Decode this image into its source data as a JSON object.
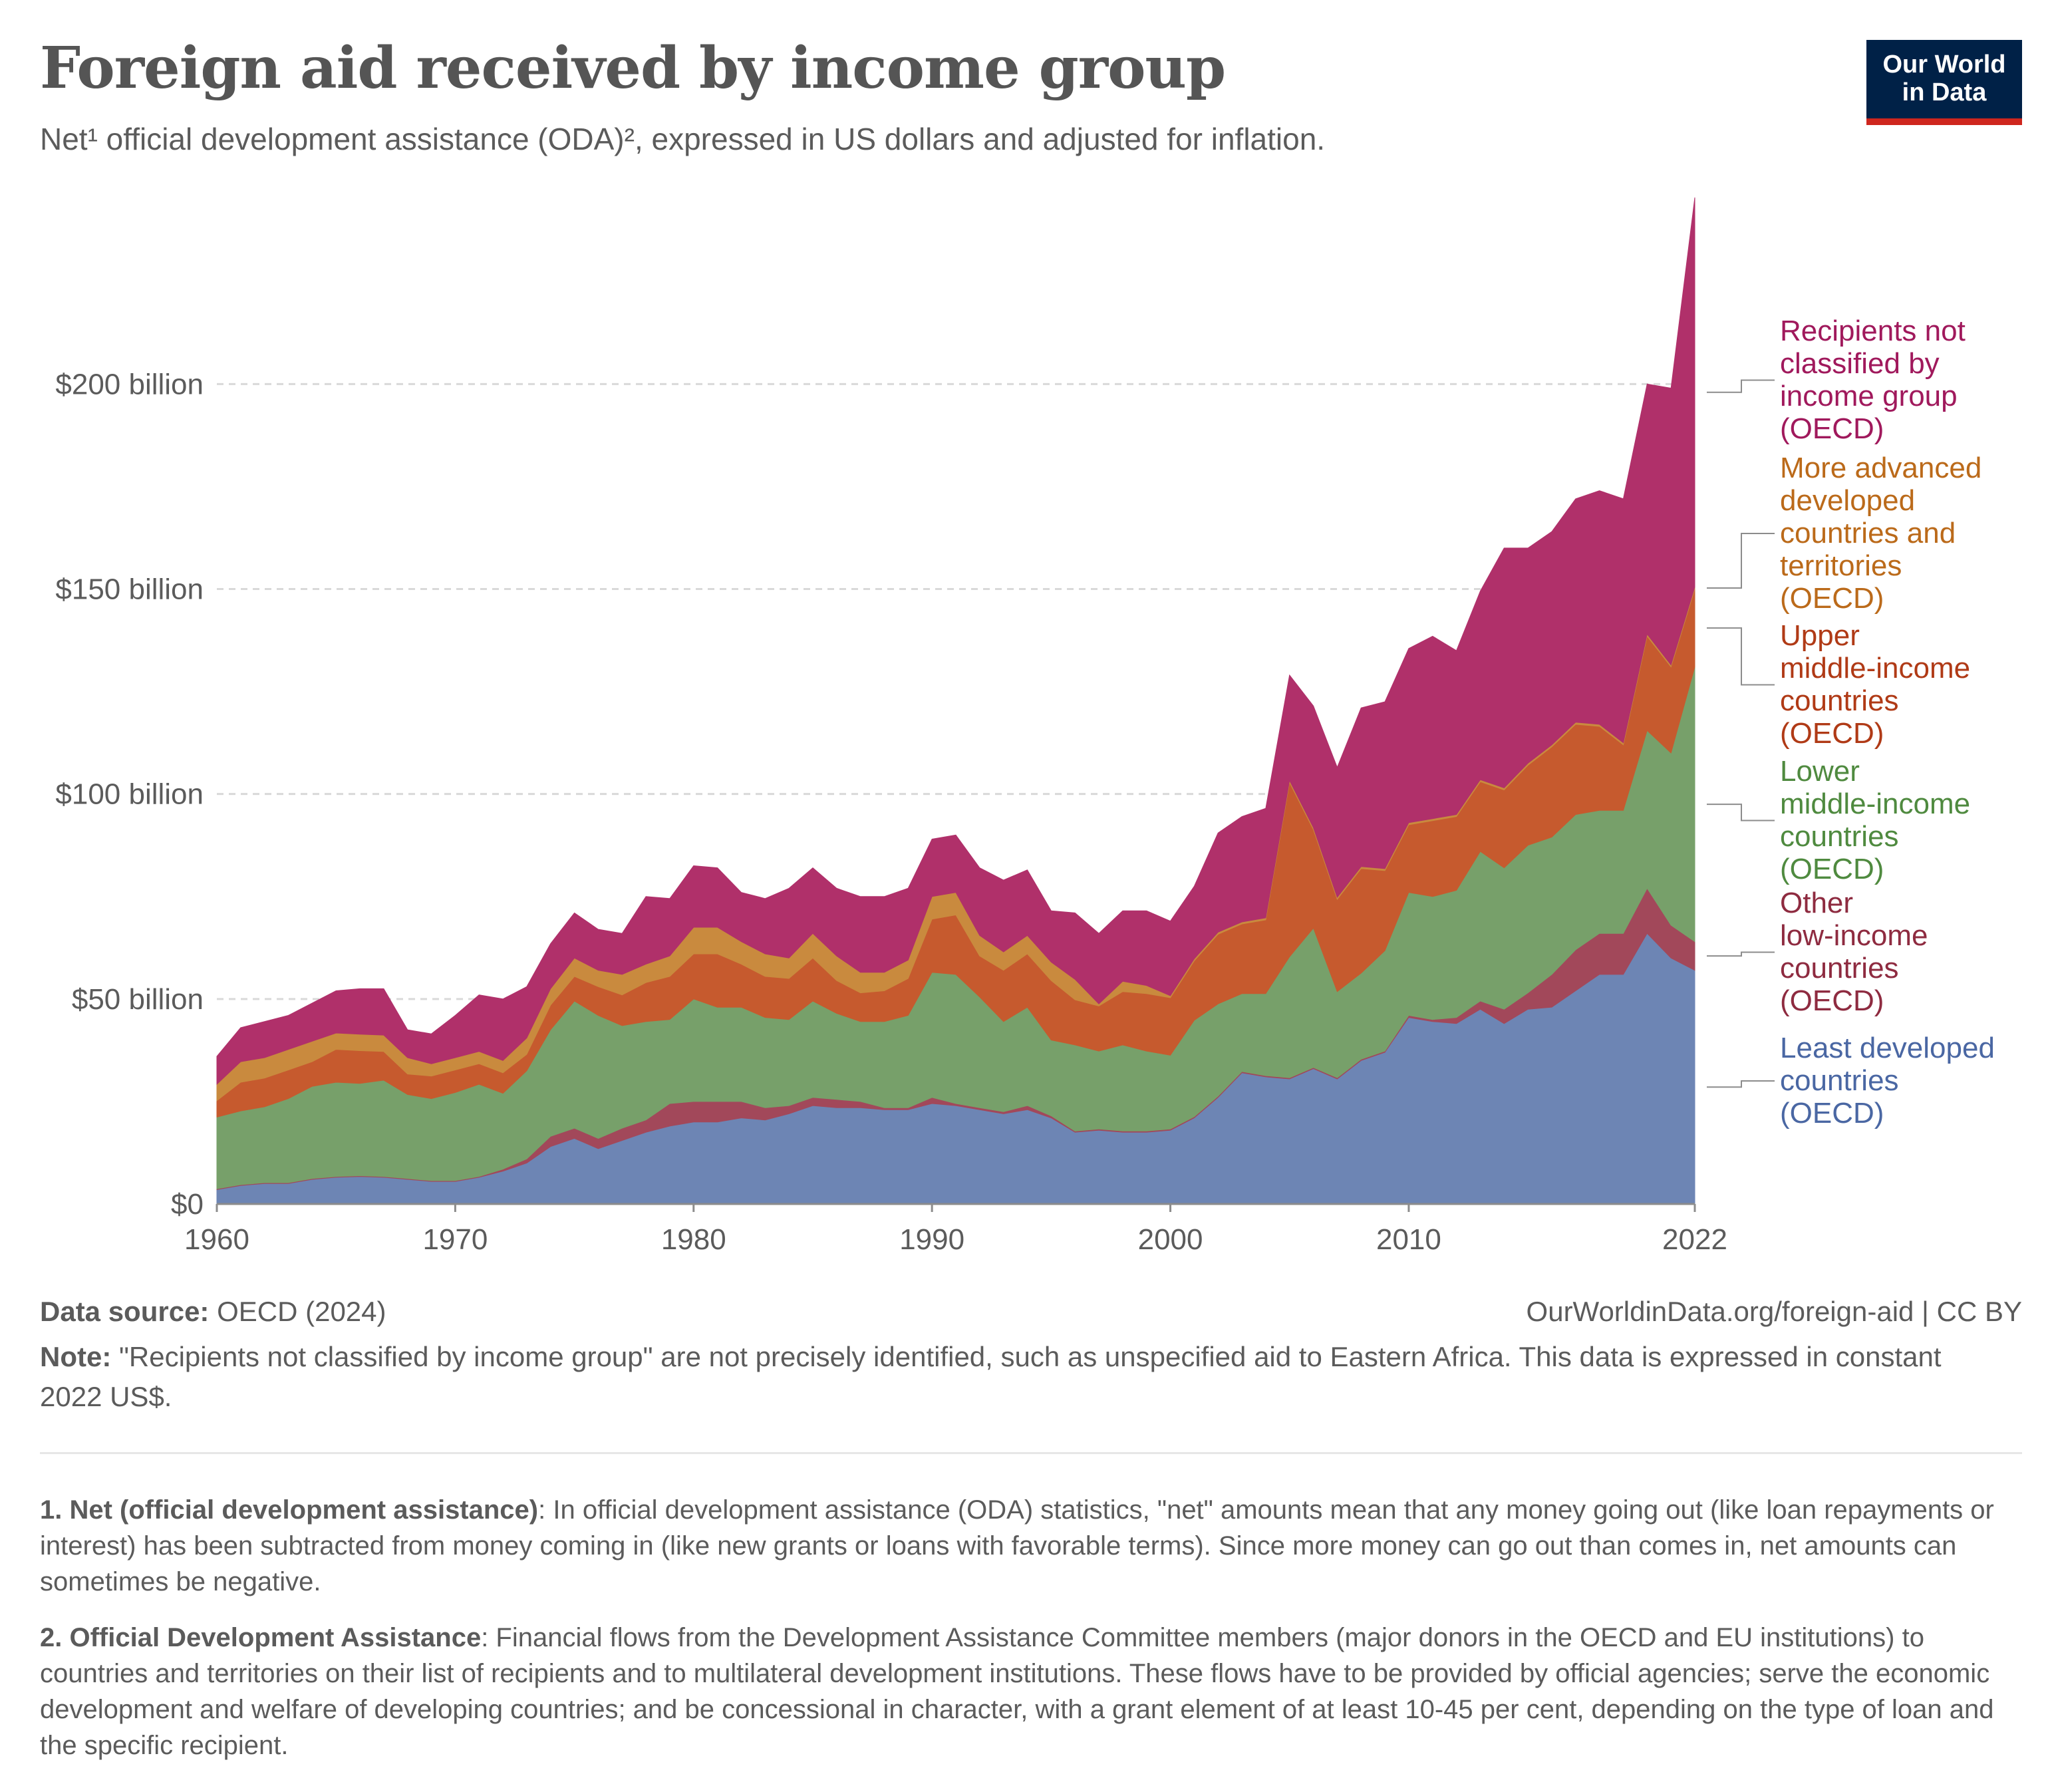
{
  "header": {
    "title": "Foreign aid received by income group",
    "subtitle": "Net¹ official development assistance (ODA)², expressed in US dollars and adjusted for inflation.",
    "logo_line1": "Our World",
    "logo_line2": "in Data"
  },
  "colors": {
    "ldc": "#6d85b4",
    "other_lic": "#a2485a",
    "lmic": "#77a06a",
    "umic": "#c65a2e",
    "madct": "#c98a3e",
    "unclassified": "#b0306a"
  },
  "chart_data": {
    "type": "area",
    "stacked": true,
    "title": "Foreign aid received by income group",
    "xlim": [
      1960,
      2022
    ],
    "ylim": [
      0,
      245
    ],
    "y_ticks": [
      0,
      50,
      100,
      150,
      200
    ],
    "y_tick_labels": [
      "$0",
      "$50 billion",
      "$100 billion",
      "$150 billion",
      "$200 billion"
    ],
    "x_tick_labels": [
      "1960",
      "1970",
      "1980",
      "1990",
      "2000",
      "2010",
      "2022"
    ],
    "x_ticks": [
      1960,
      1970,
      1980,
      1990,
      2000,
      2010,
      2022
    ],
    "grid": "horizontal dashed",
    "legend": "right",
    "unit": "billion constant 2022 US$",
    "x": [
      1960,
      1961,
      1962,
      1963,
      1964,
      1965,
      1966,
      1967,
      1968,
      1969,
      1970,
      1971,
      1972,
      1973,
      1974,
      1975,
      1976,
      1977,
      1978,
      1979,
      1980,
      1981,
      1982,
      1983,
      1984,
      1985,
      1986,
      1987,
      1988,
      1989,
      1990,
      1991,
      1992,
      1993,
      1994,
      1995,
      1996,
      1997,
      1998,
      1999,
      2000,
      2001,
      2002,
      2003,
      2004,
      2005,
      2006,
      2007,
      2008,
      2009,
      2010,
      2011,
      2012,
      2013,
      2014,
      2015,
      2016,
      2017,
      2018,
      2019,
      2020,
      2021,
      2022
    ],
    "series": [
      {
        "name": "Least developed countries (OECD)",
        "color_key": "ldc",
        "values": [
          3.5,
          4.5,
          5,
          5,
          6,
          6.5,
          6.7,
          6.5,
          6,
          5.5,
          5.5,
          6.5,
          8,
          10,
          14,
          16,
          13.5,
          15.5,
          17.5,
          19,
          20,
          20,
          21,
          20.5,
          22,
          24,
          23.5,
          23.5,
          23,
          23,
          24.5,
          24,
          23,
          22,
          23,
          21,
          17.5,
          18,
          17.5,
          17.5,
          18,
          21,
          26,
          32,
          31,
          30.5,
          33,
          30.5,
          35,
          37,
          45.5,
          44.5,
          44,
          47.5,
          44,
          47.5,
          48,
          52,
          56,
          56,
          66,
          60,
          57
        ]
      },
      {
        "name": "Other low-income countries (OECD)",
        "color_key": "other_lic",
        "values": [
          0.2,
          0.2,
          0.2,
          0.2,
          0.2,
          0.2,
          0.2,
          0.2,
          0.2,
          0.2,
          0.2,
          0.2,
          0.5,
          1,
          2.5,
          2.5,
          2.5,
          3,
          3,
          5.5,
          5,
          5,
          4,
          3,
          2,
          2,
          2,
          1.5,
          0.5,
          0.5,
          1.5,
          0.5,
          0.5,
          0.5,
          1,
          0.5,
          0.3,
          0.3,
          0.3,
          0.3,
          0.3,
          0.3,
          0.3,
          0.3,
          0.3,
          0.3,
          0.3,
          0.3,
          0.3,
          0.3,
          0.5,
          0.5,
          1.5,
          2,
          3.5,
          4,
          8,
          10,
          10,
          10,
          11,
          8,
          7
        ]
      },
      {
        "name": "Lower middle-income countries (OECD)",
        "color_key": "lmic",
        "values": [
          17.5,
          18,
          18.5,
          20.5,
          22.5,
          23,
          22.5,
          23.5,
          20.5,
          20,
          21.5,
          22.5,
          18.5,
          21.5,
          26,
          31,
          30,
          25,
          24,
          20.5,
          25,
          23,
          23,
          22,
          21,
          23.5,
          21,
          19.5,
          21,
          22.5,
          30.5,
          31.5,
          27,
          22,
          24,
          18.5,
          21,
          19,
          21,
          19.5,
          18,
          23.5,
          22.5,
          19,
          20,
          29.5,
          34,
          21,
          21,
          24.5,
          30,
          30,
          31,
          36.5,
          34.5,
          36,
          33.5,
          33,
          30,
          30,
          38.5,
          42,
          67
        ]
      },
      {
        "name": "Upper middle-income countries (OECD)",
        "color_key": "umic",
        "values": [
          4,
          7,
          7,
          7,
          6,
          8,
          8,
          7,
          5,
          5.5,
          5.5,
          5,
          5,
          4,
          6,
          6,
          7,
          7.5,
          9.5,
          10.5,
          11,
          13,
          10.5,
          10,
          10,
          10.5,
          8,
          7,
          7.5,
          9,
          13,
          14.5,
          10,
          12.5,
          13,
          14.5,
          11,
          11,
          13,
          14,
          14,
          14.5,
          17,
          17,
          18,
          42.5,
          24,
          22.5,
          25.5,
          19.5,
          16.5,
          18.5,
          18,
          17,
          19,
          19.5,
          22,
          22,
          20.5,
          16,
          23,
          21,
          19
        ]
      },
      {
        "name": "More advanced developed countries and territories (OECD)",
        "color_key": "madct",
        "values": [
          4,
          5,
          5,
          5,
          5,
          4,
          4,
          4,
          4,
          3,
          3,
          3,
          3,
          4,
          4,
          4.5,
          4,
          5,
          4.5,
          5,
          6.5,
          6.5,
          5.5,
          5.5,
          5,
          6,
          6,
          5,
          4.5,
          4.5,
          5.5,
          5.5,
          5,
          4.5,
          4.5,
          4.5,
          5,
          0.5,
          2.5,
          2,
          0.5,
          0.5,
          0.5,
          0.5,
          0.5,
          0.5,
          0.5,
          0.5,
          0.5,
          0.5,
          0.5,
          0.5,
          0.5,
          0.5,
          0.5,
          0.5,
          0.5,
          0.5,
          0.5,
          0.5,
          0.5,
          0.5,
          0.5
        ]
      },
      {
        "name": "Recipients not classified by income group (OECD)",
        "color_key": "unclassified",
        "values": [
          6.8,
          8.3,
          8.8,
          8.3,
          9.3,
          10.3,
          11.1,
          11.3,
          6.8,
          7.3,
          10.3,
          13.8,
          15,
          12.5,
          11,
          11,
          10,
          10,
          16.5,
          14,
          15,
          14.5,
          12,
          13.5,
          17,
          16,
          16.5,
          18.5,
          18.5,
          17.5,
          14,
          14,
          16.5,
          17.5,
          16,
          12.5,
          16.2,
          17.2,
          17.2,
          18.2,
          18.2,
          17.7,
          24.2,
          25.7,
          26.7,
          25.7,
          29.7,
          31.7,
          38.7,
          40.7,
          42.5,
          44.5,
          40,
          46,
          58.5,
          52.5,
          52,
          54.5,
          57,
          59.5,
          61,
          67.5,
          95
        ]
      }
    ]
  },
  "legend_labels": [
    {
      "key": "unclassified",
      "lines": [
        "Recipients not",
        "classified by",
        "income group",
        "(OECD)"
      ]
    },
    {
      "key": "madct",
      "lines": [
        "More advanced",
        "developed",
        "countries and",
        "territories",
        "(OECD)"
      ]
    },
    {
      "key": "umic",
      "lines": [
        "Upper",
        "middle-income",
        "countries",
        "(OECD)"
      ]
    },
    {
      "key": "lmic",
      "lines": [
        "Lower",
        "middle-income",
        "countries",
        "(OECD)"
      ]
    },
    {
      "key": "other_lic",
      "lines": [
        "Other",
        "low-income",
        "countries",
        "(OECD)"
      ]
    },
    {
      "key": "ldc",
      "lines": [
        "Least developed",
        "countries",
        "(OECD)"
      ]
    }
  ],
  "legend_text_colors": {
    "unclassified": "#a0195c",
    "madct": "#bb6a1a",
    "umic": "#b03a16",
    "lmic": "#4f8a3f",
    "other_lic": "#8e2b40",
    "ldc": "#4a67a3"
  },
  "footer": {
    "source_label": "Data source:",
    "source_value": "OECD (2024)",
    "url_license": "OurWorldinData.org/foreign-aid | CC BY",
    "note_label": "Note:",
    "note_text": "\"Recipients not classified by income group\" are not precisely identified, such as unspecified aid to Eastern Africa. This data is expressed in constant 2022 US$."
  },
  "footnotes": [
    {
      "label": "1. Net (official development assistance)",
      "text": ": In official development assistance (ODA) statistics, \"net\" amounts mean that any money going out (like loan repayments or interest) has been subtracted from money coming in (like new grants or loans with favorable terms). Since more money can go out than comes in, net amounts can sometimes be negative."
    },
    {
      "label": "2. Official Development Assistance",
      "text": ": Financial flows from the Development Assistance Committee members (major donors in the OECD and EU institutions) to countries and territories on their list of recipients and to multilateral development institutions. These flows have to be provided by official agencies; serve the economic development and welfare of developing countries; and be concessional in character, with a grant element of at least 10-45 per cent, depending on the type of loan and the specific recipient."
    }
  ]
}
